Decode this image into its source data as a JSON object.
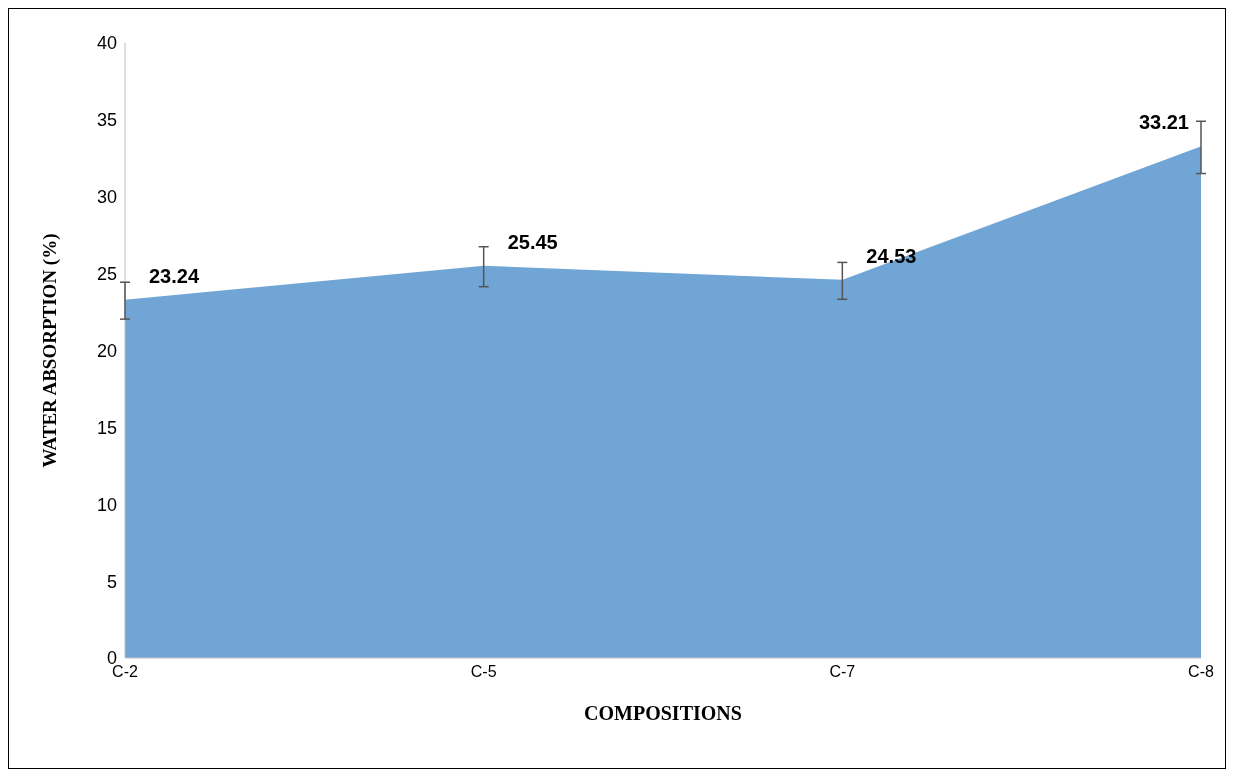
{
  "chart_data": {
    "type": "area",
    "xlabel": "COMPOSITIONS",
    "ylabel": "WATER ABSORPTION (%)",
    "categories": [
      "C-2",
      "C-5",
      "C-7",
      "C-8"
    ],
    "series": [
      {
        "color": "#70a5d6",
        "values": [
          23.24,
          25.45,
          24.53,
          33.21
        ],
        "errors": [
          1.2,
          1.3,
          1.2,
          1.7
        ]
      }
    ],
    "ylim": [
      0,
      40
    ],
    "yticks": [
      0,
      5,
      10,
      15,
      20,
      25,
      30,
      35,
      40
    ],
    "grid": false,
    "data_labels": true
  }
}
